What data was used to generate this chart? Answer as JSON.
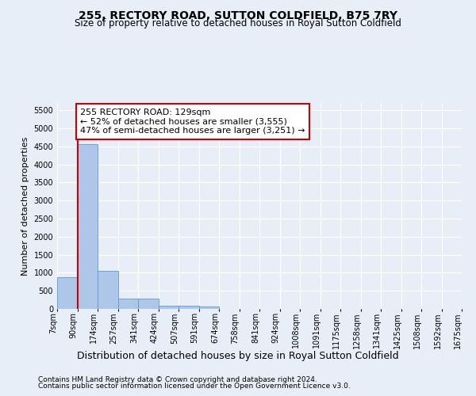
{
  "title": "255, RECTORY ROAD, SUTTON COLDFIELD, B75 7RY",
  "subtitle": "Size of property relative to detached houses in Royal Sutton Coldfield",
  "xlabel": "Distribution of detached houses by size in Royal Sutton Coldfield",
  "ylabel": "Number of detached properties",
  "footnote1": "Contains HM Land Registry data © Crown copyright and database right 2024.",
  "footnote2": "Contains public sector information licensed under the Open Government Licence v3.0.",
  "bin_labels": [
    "7sqm",
    "90sqm",
    "174sqm",
    "257sqm",
    "341sqm",
    "424sqm",
    "507sqm",
    "591sqm",
    "674sqm",
    "758sqm",
    "841sqm",
    "924sqm",
    "1008sqm",
    "1091sqm",
    "1175sqm",
    "1258sqm",
    "1341sqm",
    "1425sqm",
    "1508sqm",
    "1592sqm",
    "1675sqm"
  ],
  "bar_values": [
    880,
    4560,
    1060,
    290,
    290,
    85,
    80,
    55,
    0,
    0,
    0,
    0,
    0,
    0,
    0,
    0,
    0,
    0,
    0,
    0
  ],
  "bar_color": "#aec6e8",
  "bar_edge_color": "#5b9bd5",
  "vline_x": 1,
  "vline_color": "#cc0000",
  "annotation_text": "255 RECTORY ROAD: 129sqm\n← 52% of detached houses are smaller (3,555)\n47% of semi-detached houses are larger (3,251) →",
  "annotation_box_color": "#ffffff",
  "annotation_box_edge_color": "#cc0000",
  "ylim": [
    0,
    5700
  ],
  "yticks": [
    0,
    500,
    1000,
    1500,
    2000,
    2500,
    3000,
    3500,
    4000,
    4500,
    5000,
    5500
  ],
  "background_color": "#e8eef7",
  "plot_bg_color": "#e8eef7",
  "grid_color": "#ffffff",
  "title_fontsize": 10,
  "subtitle_fontsize": 8.5,
  "xlabel_fontsize": 9,
  "ylabel_fontsize": 8,
  "tick_fontsize": 7,
  "annotation_fontsize": 8,
  "footnote_fontsize": 6.5
}
